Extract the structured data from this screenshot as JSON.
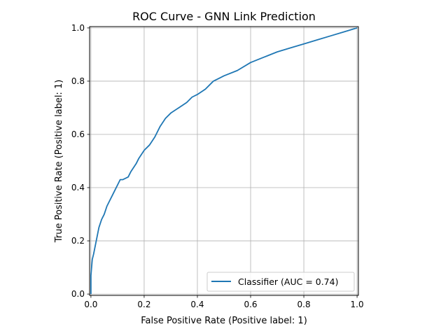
{
  "chart_data": {
    "type": "line",
    "title": "ROC Curve - GNN Link Prediction",
    "xlabel": "False Positive Rate (Positive label: 1)",
    "ylabel": "True Positive Rate (Positive label: 1)",
    "xlim": [
      -0.005,
      1.005
    ],
    "ylim": [
      -0.005,
      1.005
    ],
    "xticks": [
      {
        "value": 0.0,
        "label": "0.0"
      },
      {
        "value": 0.2,
        "label": "0.2"
      },
      {
        "value": 0.4,
        "label": "0.4"
      },
      {
        "value": 0.6,
        "label": "0.6"
      },
      {
        "value": 0.8,
        "label": "0.8"
      },
      {
        "value": 1.0,
        "label": "1.0"
      }
    ],
    "yticks": [
      {
        "value": 0.0,
        "label": "0.0"
      },
      {
        "value": 0.2,
        "label": "0.2"
      },
      {
        "value": 0.4,
        "label": "0.4"
      },
      {
        "value": 0.6,
        "label": "0.6"
      },
      {
        "value": 0.8,
        "label": "0.8"
      },
      {
        "value": 1.0,
        "label": "1.0"
      }
    ],
    "grid": true,
    "legend_position": "lower-right",
    "series": [
      {
        "name": "Classifier (AUC = 0.74)",
        "color": "#1f77b4",
        "x": [
          0.0,
          0.0,
          0.005,
          0.01,
          0.02,
          0.03,
          0.04,
          0.05,
          0.06,
          0.07,
          0.08,
          0.09,
          0.1,
          0.11,
          0.12,
          0.14,
          0.15,
          0.17,
          0.18,
          0.2,
          0.22,
          0.24,
          0.26,
          0.28,
          0.3,
          0.33,
          0.36,
          0.38,
          0.4,
          0.43,
          0.46,
          0.48,
          0.5,
          0.55,
          0.6,
          0.65,
          0.7,
          0.75,
          0.8,
          0.85,
          0.9,
          0.95,
          1.0
        ],
        "y": [
          0.0,
          0.07,
          0.13,
          0.15,
          0.2,
          0.25,
          0.28,
          0.3,
          0.33,
          0.35,
          0.37,
          0.39,
          0.41,
          0.43,
          0.43,
          0.44,
          0.46,
          0.49,
          0.51,
          0.54,
          0.56,
          0.59,
          0.63,
          0.66,
          0.68,
          0.7,
          0.72,
          0.74,
          0.75,
          0.77,
          0.8,
          0.81,
          0.82,
          0.84,
          0.87,
          0.89,
          0.91,
          0.925,
          0.94,
          0.955,
          0.97,
          0.985,
          1.0
        ]
      }
    ]
  }
}
